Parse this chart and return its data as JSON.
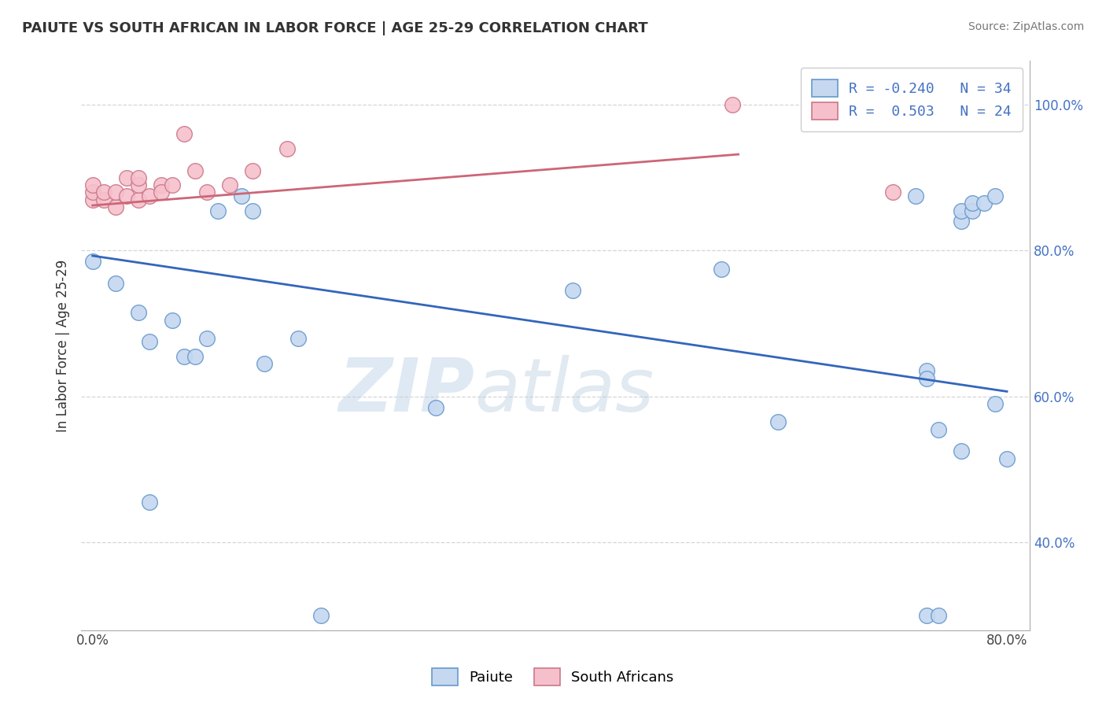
{
  "title": "PAIUTE VS SOUTH AFRICAN IN LABOR FORCE | AGE 25-29 CORRELATION CHART",
  "source": "Source: ZipAtlas.com",
  "ylabel": "In Labor Force | Age 25-29",
  "watermark_zip": "ZIP",
  "watermark_atlas": "atlas",
  "legend_blue_r": "-0.240",
  "legend_blue_n": "34",
  "legend_pink_r": "0.503",
  "legend_pink_n": "24",
  "legend_blue_label": "Paiute",
  "legend_pink_label": "South Africans",
  "xlim": [
    -0.01,
    0.82
  ],
  "ylim": [
    0.28,
    1.06
  ],
  "xticks": [
    0.0,
    0.8
  ],
  "xticklabels": [
    "0.0%",
    "80.0%"
  ],
  "yticks": [
    0.4,
    0.6,
    0.8,
    1.0
  ],
  "yticklabels": [
    "40.0%",
    "60.0%",
    "80.0%",
    "100.0%"
  ],
  "blue_fill_color": "#c5d8f0",
  "blue_edge_color": "#6699cc",
  "pink_fill_color": "#f5c0cc",
  "pink_edge_color": "#cc7788",
  "blue_line_color": "#3366bb",
  "pink_line_color": "#cc6677",
  "grid_color": "#cccccc",
  "background_color": "#ffffff",
  "blue_scatter_x": [
    0.0,
    0.02,
    0.04,
    0.05,
    0.05,
    0.07,
    0.08,
    0.09,
    0.1,
    0.11,
    0.13,
    0.14,
    0.15,
    0.18,
    0.2,
    0.3,
    0.42,
    0.55,
    0.6,
    0.72,
    0.73,
    0.73,
    0.73,
    0.74,
    0.74,
    0.76,
    0.76,
    0.76,
    0.77,
    0.77,
    0.78,
    0.79,
    0.79,
    0.8
  ],
  "blue_scatter_y": [
    0.785,
    0.755,
    0.715,
    0.675,
    0.455,
    0.705,
    0.655,
    0.655,
    0.68,
    0.855,
    0.875,
    0.855,
    0.645,
    0.68,
    0.3,
    0.585,
    0.745,
    0.775,
    0.565,
    0.875,
    0.635,
    0.625,
    0.3,
    0.3,
    0.555,
    0.84,
    0.525,
    0.855,
    0.855,
    0.865,
    0.865,
    0.875,
    0.59,
    0.515
  ],
  "pink_scatter_x": [
    0.0,
    0.0,
    0.0,
    0.01,
    0.01,
    0.02,
    0.02,
    0.03,
    0.03,
    0.04,
    0.04,
    0.04,
    0.05,
    0.06,
    0.06,
    0.07,
    0.08,
    0.09,
    0.1,
    0.12,
    0.14,
    0.17,
    0.56,
    0.7
  ],
  "pink_scatter_y": [
    0.87,
    0.88,
    0.89,
    0.87,
    0.88,
    0.86,
    0.88,
    0.875,
    0.9,
    0.87,
    0.89,
    0.9,
    0.875,
    0.89,
    0.88,
    0.89,
    0.96,
    0.91,
    0.88,
    0.89,
    0.91,
    0.94,
    1.0,
    0.88
  ],
  "blue_trend_x": [
    0.0,
    0.8
  ],
  "blue_trend_y": [
    0.793,
    0.607
  ],
  "pink_trend_x": [
    0.0,
    0.565
  ],
  "pink_trend_y": [
    0.862,
    0.932
  ]
}
